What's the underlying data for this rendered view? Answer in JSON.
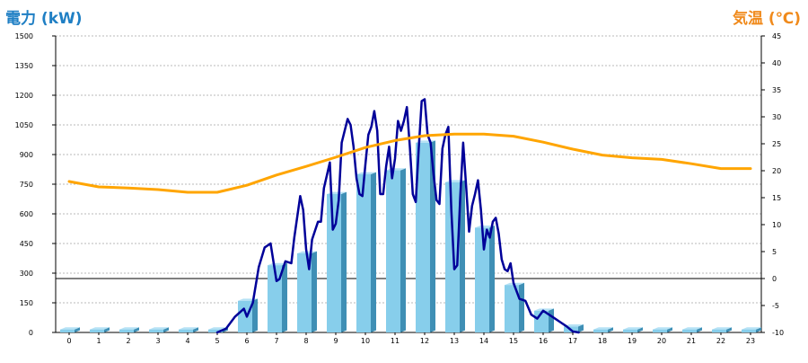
{
  "chart_data": {
    "type": "bar+line",
    "left_axis_title": "電力 (kW)",
    "right_axis_title": "気温 (℃)",
    "left_ticks": [
      "1500",
      "1350",
      "1200",
      "1050",
      "900",
      "750",
      "600",
      "450",
      "300",
      "150",
      "0"
    ],
    "right_ticks": [
      "45",
      "40",
      "35",
      "30",
      "25",
      "20",
      "15",
      "10",
      "5",
      "0",
      "-5",
      "-10"
    ],
    "categories": [
      "0",
      "1",
      "2",
      "3",
      "4",
      "5",
      "6",
      "7",
      "8",
      "9",
      "10",
      "11",
      "12",
      "13",
      "14",
      "15",
      "16",
      "17",
      "18",
      "19",
      "20",
      "21",
      "22",
      "23"
    ],
    "ylim_power": [
      0,
      1500
    ],
    "ylim_temp": [
      -10,
      45
    ],
    "grid": true,
    "series": [
      {
        "kind": "bar",
        "axis": "left",
        "color": "#87ceeb",
        "values": [
          15,
          15,
          15,
          15,
          15,
          15,
          160,
          340,
          400,
          700,
          800,
          820,
          960,
          760,
          530,
          240,
          110,
          30,
          15,
          15,
          15,
          15,
          15,
          15
        ]
      },
      {
        "kind": "line",
        "axis": "left",
        "color": "#000099",
        "x": [
          5.0,
          5.3,
          5.6,
          5.9,
          6.0,
          6.2,
          6.4,
          6.6,
          6.8,
          7.0,
          7.1,
          7.3,
          7.5,
          7.6,
          7.8,
          7.9,
          8.0,
          8.1,
          8.2,
          8.4,
          8.5,
          8.6,
          8.8,
          8.9,
          9.0,
          9.1,
          9.2,
          9.3,
          9.4,
          9.5,
          9.6,
          9.7,
          9.8,
          9.9,
          10.0,
          10.1,
          10.2,
          10.3,
          10.4,
          10.5,
          10.6,
          10.7,
          10.8,
          10.9,
          11.0,
          11.1,
          11.2,
          11.3,
          11.4,
          11.5,
          11.6,
          11.7,
          11.8,
          11.9,
          12.0,
          12.1,
          12.2,
          12.3,
          12.4,
          12.5,
          12.6,
          12.7,
          12.8,
          12.9,
          13.0,
          13.1,
          13.2,
          13.3,
          13.4,
          13.5,
          13.6,
          13.7,
          13.8,
          13.9,
          14.0,
          14.1,
          14.2,
          14.3,
          14.4,
          14.5,
          14.6,
          14.7,
          14.8,
          14.9,
          15.0,
          15.2,
          15.4,
          15.6,
          15.8,
          16.0,
          16.2,
          16.4,
          16.6,
          16.8,
          17.0,
          17.2
        ],
        "values": [
          0,
          20,
          80,
          120,
          80,
          150,
          330,
          430,
          450,
          260,
          270,
          360,
          350,
          480,
          690,
          620,
          420,
          320,
          470,
          560,
          560,
          730,
          860,
          520,
          550,
          670,
          960,
          1020,
          1080,
          1050,
          940,
          780,
          700,
          690,
          850,
          1000,
          1040,
          1120,
          1020,
          700,
          700,
          840,
          940,
          780,
          880,
          1070,
          1020,
          1070,
          1140,
          940,
          700,
          660,
          930,
          1170,
          1180,
          1000,
          960,
          800,
          670,
          650,
          930,
          1000,
          1040,
          620,
          320,
          340,
          680,
          960,
          740,
          510,
          640,
          700,
          770,
          620,
          420,
          520,
          480,
          560,
          580,
          500,
          370,
          320,
          310,
          350,
          250,
          170,
          160,
          90,
          70,
          110,
          90,
          70,
          50,
          30,
          5,
          0
        ]
      },
      {
        "kind": "line",
        "axis": "right",
        "color": "#ffa500",
        "x": [
          0,
          1,
          2,
          3,
          4,
          5,
          6,
          7,
          8,
          9,
          10,
          11,
          12,
          13,
          14,
          15,
          16,
          17,
          18,
          19,
          20,
          21,
          22,
          23
        ],
        "values": [
          18,
          17,
          16.8,
          16.5,
          16,
          16,
          17.3,
          19.2,
          20.8,
          22.5,
          24.3,
          25.6,
          26.5,
          26.8,
          26.8,
          26.4,
          25.3,
          24,
          22.9,
          22.4,
          22.1,
          21.3,
          20.4,
          20.4
        ]
      }
    ]
  }
}
